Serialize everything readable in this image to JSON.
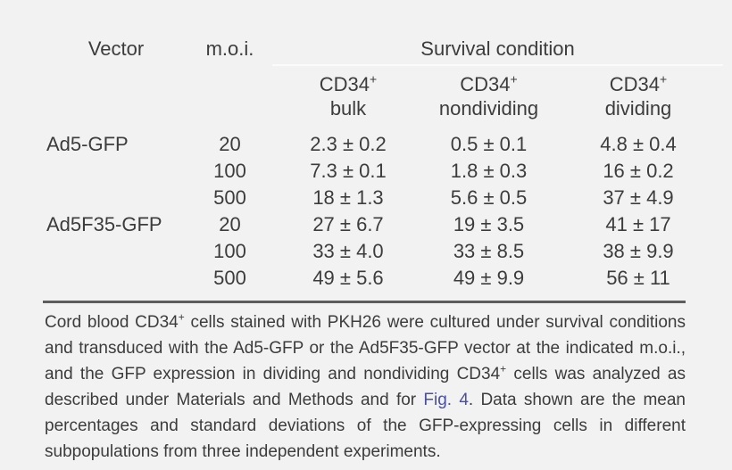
{
  "colors": {
    "background": "#f2f2f2",
    "text": "#3c3c3c",
    "link": "#4a4fa0",
    "heavy_rule": "#5d5d5d",
    "faint_header_rule": "#fbfbfb"
  },
  "table": {
    "header": {
      "vector": "Vector",
      "moi": "m.o.i.",
      "survival": "Survival condition",
      "conditions": [
        {
          "marker": "CD34",
          "marker_sup": "+",
          "label": "bulk"
        },
        {
          "marker": "CD34",
          "marker_sup": "+",
          "label": "nondividing"
        },
        {
          "marker": "CD34",
          "marker_sup": "+",
          "label": "dividing"
        }
      ]
    },
    "rows": [
      {
        "vector": "Ad5-GFP",
        "moi": "20",
        "bulk": "2.3 ± 0.2",
        "nondividing": "0.5 ± 0.1",
        "dividing": "4.8 ± 0.4"
      },
      {
        "vector": "",
        "moi": "100",
        "bulk": "7.3 ± 0.1",
        "nondividing": "1.8 ± 0.3",
        "dividing": "16 ± 0.2"
      },
      {
        "vector": "",
        "moi": "500",
        "bulk": "18 ± 1.3",
        "nondividing": "5.6 ± 0.5",
        "dividing": "37 ± 4.9"
      },
      {
        "vector": "Ad5F35-GFP",
        "moi": "20",
        "bulk": "27 ± 6.7",
        "nondividing": "19 ± 3.5",
        "dividing": "41 ± 17"
      },
      {
        "vector": "",
        "moi": "100",
        "bulk": "33 ± 4.0",
        "nondividing": "33 ± 8.5",
        "dividing": "38 ± 9.9"
      },
      {
        "vector": "",
        "moi": "500",
        "bulk": "49 ± 5.6",
        "nondividing": "49 ± 9.9",
        "dividing": "56 ± 11"
      }
    ]
  },
  "footnote": {
    "segments": [
      {
        "text": "Cord blood CD34",
        "style": "normal"
      },
      {
        "text": "+",
        "style": "sup"
      },
      {
        "text": " cells stained with PKH26 were cultured under survival conditions and transduced with the Ad5-GFP or the Ad5F35-GFP vector at the indicated m.o.i., and the GFP expression in dividing and nondividing CD34",
        "style": "normal"
      },
      {
        "text": "+",
        "style": "sup"
      },
      {
        "text": " cells was analyzed as described under Materials and Methods and for ",
        "style": "normal"
      },
      {
        "text": "Fig. 4",
        "style": "link"
      },
      {
        "text": ". Data shown are the mean percentages and standard deviations of the GFP-expressing cells in different subpopulations from three independent experiments.",
        "style": "normal"
      }
    ]
  }
}
